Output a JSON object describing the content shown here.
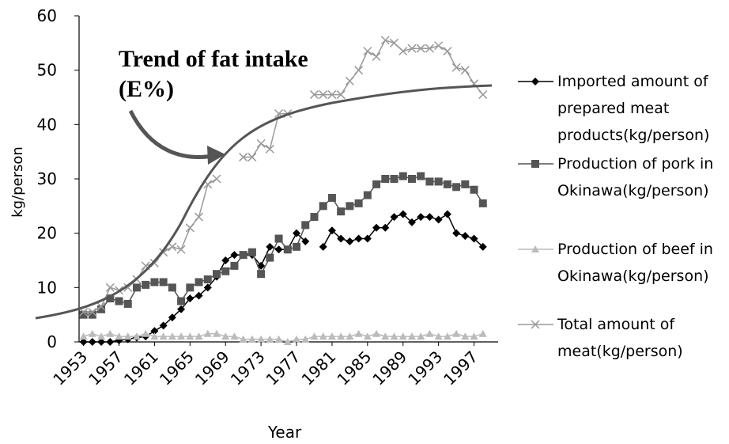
{
  "chart_data": {
    "type": "line",
    "x_label": "Year",
    "y_label": "kg/person",
    "annotation": [
      "Trend of fat intake",
      "(E%)"
    ],
    "x": [
      1953,
      1954,
      1955,
      1956,
      1957,
      1958,
      1959,
      1960,
      1961,
      1962,
      1963,
      1964,
      1965,
      1966,
      1967,
      1968,
      1969,
      1970,
      1971,
      1972,
      1973,
      1974,
      1975,
      1976,
      1977,
      1978,
      1979,
      1980,
      1981,
      1982,
      1983,
      1984,
      1985,
      1986,
      1987,
      1988,
      1989,
      1990,
      1991,
      1992,
      1993,
      1994,
      1995,
      1996,
      1997,
      1998
    ],
    "xlim": [
      1952.5,
      1999
    ],
    "xticks": [
      1953,
      1957,
      1961,
      1965,
      1969,
      1973,
      1977,
      1981,
      1985,
      1989,
      1993,
      1997
    ],
    "ylim": [
      0,
      60
    ],
    "yticks": [
      0,
      10,
      20,
      30,
      40,
      50,
      60
    ],
    "series": [
      {
        "name": "Imported amount of prepared meat products(kg/person)",
        "color": "#000000",
        "marker": "diamond",
        "values": [
          0,
          0,
          0,
          0,
          0.3,
          0.5,
          0.8,
          1,
          2,
          3,
          4.5,
          6,
          8,
          8.5,
          10,
          12,
          15,
          16,
          16,
          16,
          14,
          17.5,
          17,
          17,
          20,
          18.5,
          null,
          17.5,
          20.5,
          19,
          18.5,
          19,
          19,
          21,
          21,
          23,
          23.5,
          22,
          23,
          23,
          22.5,
          23.5,
          20,
          19.5,
          19,
          17.5
        ]
      },
      {
        "name": "Production of pork in Okinawa(kg/person)",
        "color": "#555555",
        "marker": "square",
        "values": [
          5,
          5,
          6,
          8,
          7.5,
          7,
          10,
          10.5,
          11,
          11,
          10,
          7.5,
          10,
          11,
          11.5,
          12.5,
          13,
          14,
          16,
          16.5,
          12.5,
          15.5,
          19,
          17,
          17.5,
          21.5,
          23,
          25,
          26.5,
          24,
          25,
          25.5,
          27,
          29,
          30,
          30,
          30.5,
          30,
          30.5,
          29.5,
          29.5,
          29,
          28.5,
          29,
          28,
          25.5
        ]
      },
      {
        "name": "Production of beef in Okinawa(kg/person)",
        "color": "#bbbbbb",
        "marker": "triangle",
        "values": [
          1,
          1.5,
          1,
          1.5,
          1,
          1,
          1,
          1.5,
          1,
          1,
          1,
          1,
          1,
          1,
          1.5,
          1.5,
          1,
          1,
          0.5,
          0.5,
          0.5,
          0.5,
          0.5,
          0,
          0.5,
          0.5,
          1,
          1,
          1,
          1,
          1,
          1.5,
          1,
          1.5,
          1,
          1,
          1,
          1,
          1,
          1.5,
          1,
          1,
          1.5,
          1,
          1,
          1.5
        ]
      },
      {
        "name": "Total amount of meat(kg/person)",
        "color": "#999999",
        "marker": "x",
        "values": [
          5.5,
          5.5,
          6.5,
          10,
          9.5,
          10,
          11.5,
          14,
          14.5,
          16.5,
          17.5,
          17,
          21,
          23,
          29,
          30,
          null,
          null,
          34,
          34,
          36.5,
          35.5,
          42,
          42,
          null,
          null,
          45.5,
          45.5,
          45.5,
          45.5,
          48,
          50,
          53.5,
          52.5,
          55.5,
          55,
          53.5,
          54,
          54,
          54,
          54.5,
          53.5,
          50.5,
          50,
          47.5,
          45.5
        ]
      }
    ]
  }
}
